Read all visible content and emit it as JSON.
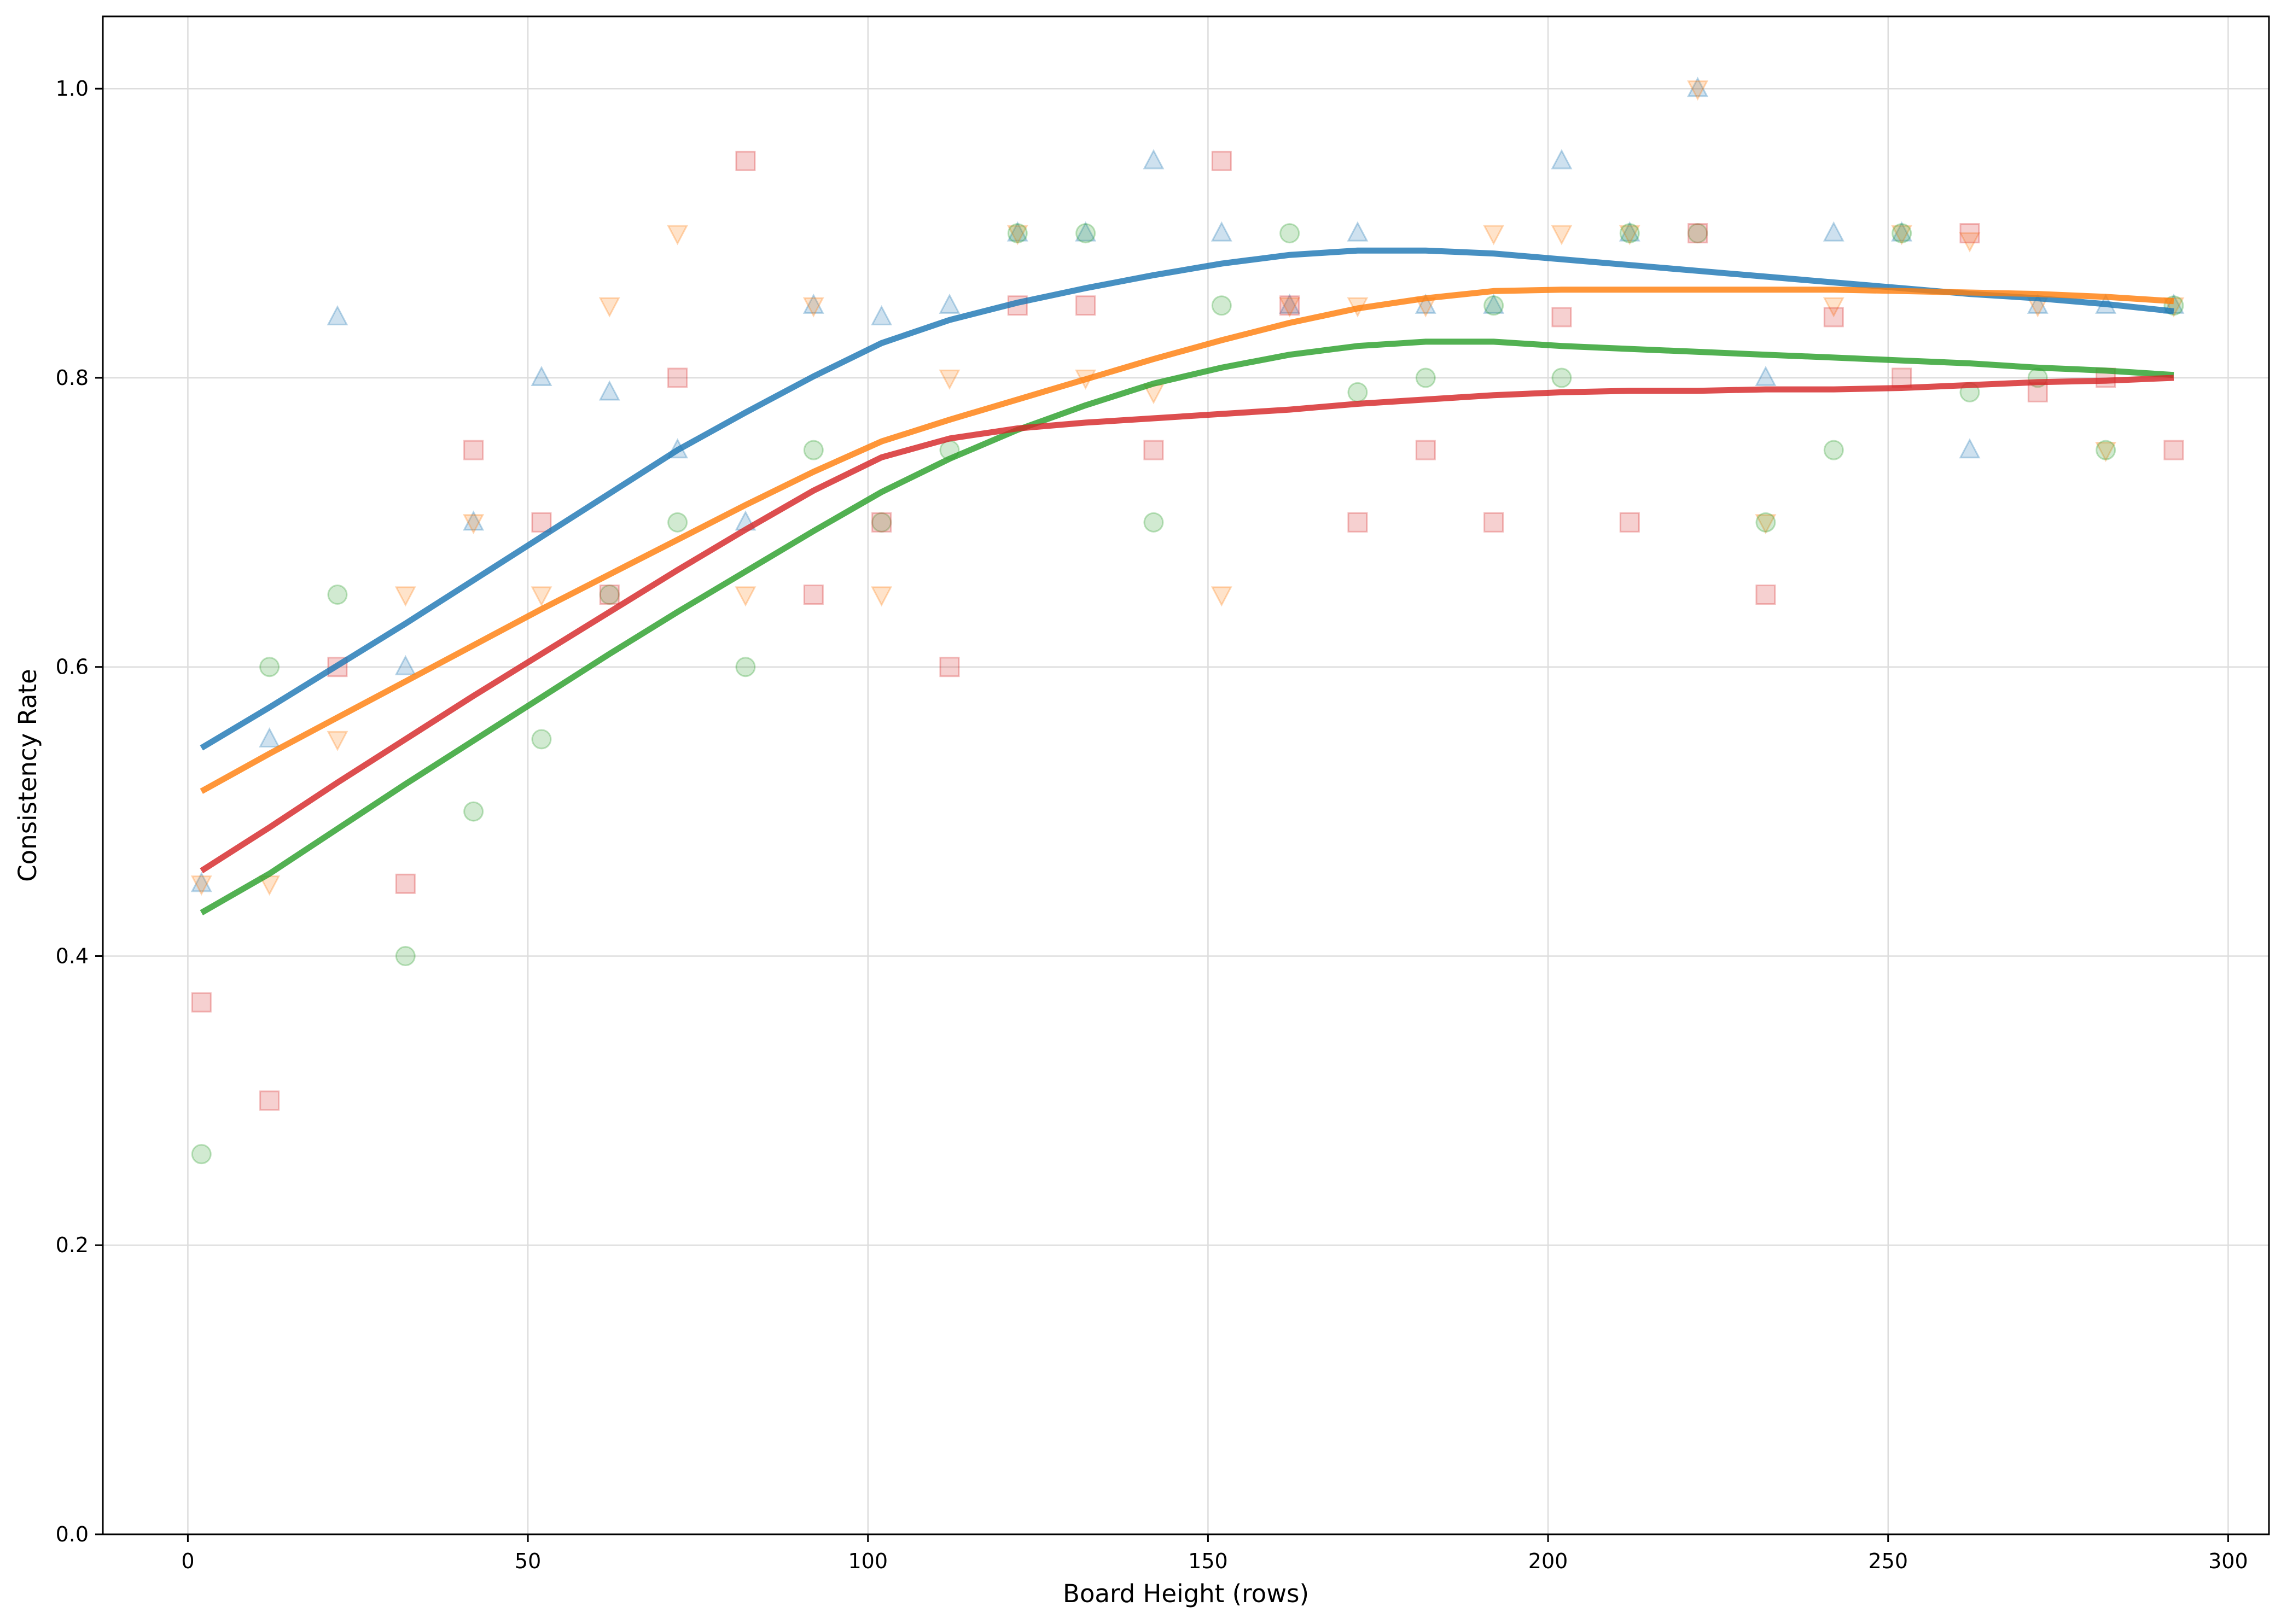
{
  "chart_data": {
    "type": "scatter",
    "xlabel": "Board Height (rows)",
    "ylabel": "Consistency Rate",
    "xlim": [
      -12.5,
      306
    ],
    "ylim": [
      0.0,
      1.05
    ],
    "xticks": [
      0,
      50,
      100,
      150,
      200,
      250,
      300
    ],
    "yticks": [
      0.0,
      0.2,
      0.4,
      0.6,
      0.8,
      1.0
    ],
    "xtick_labels": [
      "0",
      "50",
      "100",
      "150",
      "200",
      "250",
      "300"
    ],
    "ytick_labels": [
      "0.0",
      "0.2",
      "0.4",
      "0.6",
      "0.8",
      "1.0"
    ],
    "grid": true,
    "legend": "none",
    "series": [
      {
        "color": "#1f77b4",
        "marker": "triangle-up",
        "x": [
          2,
          12,
          22,
          32,
          42,
          52,
          62,
          72,
          82,
          92,
          102,
          112,
          122,
          132,
          142,
          152,
          162,
          172,
          182,
          192,
          202,
          212,
          222,
          232,
          242,
          252,
          262,
          272,
          282,
          292
        ],
        "y": [
          0.45,
          0.55,
          0.842,
          0.6,
          0.7,
          0.8,
          0.79,
          0.75,
          0.7,
          0.85,
          0.842,
          0.85,
          0.9,
          0.9,
          0.95,
          0.9,
          0.85,
          0.9,
          0.85,
          0.85,
          0.95,
          0.9,
          1.0,
          0.8,
          0.9,
          0.9,
          0.75,
          0.85,
          0.85,
          0.85
        ],
        "trend_x": [
          2,
          12,
          22,
          32,
          42,
          52,
          62,
          72,
          82,
          92,
          102,
          112,
          122,
          132,
          142,
          152,
          162,
          172,
          182,
          192,
          202,
          212,
          222,
          232,
          242,
          252,
          262,
          272,
          282,
          292
        ],
        "trend_y": [
          0.544,
          0.572,
          0.601,
          0.63,
          0.66,
          0.69,
          0.72,
          0.75,
          0.776,
          0.801,
          0.824,
          0.84,
          0.852,
          0.862,
          0.871,
          0.879,
          0.885,
          0.888,
          0.888,
          0.886,
          0.882,
          0.878,
          0.874,
          0.87,
          0.866,
          0.862,
          0.858,
          0.855,
          0.851,
          0.846
        ]
      },
      {
        "color": "#ff7f0e",
        "marker": "triangle-down",
        "x": [
          2,
          12,
          22,
          32,
          42,
          52,
          62,
          72,
          82,
          92,
          102,
          112,
          122,
          132,
          142,
          152,
          162,
          172,
          182,
          192,
          202,
          212,
          222,
          232,
          242,
          252,
          262,
          272,
          282,
          292
        ],
        "y": [
          0.45,
          0.45,
          0.55,
          0.65,
          0.7,
          0.65,
          0.85,
          0.9,
          0.65,
          0.85,
          0.65,
          0.8,
          0.9,
          0.8,
          0.79,
          0.65,
          0.85,
          0.85,
          0.85,
          0.9,
          0.9,
          0.9,
          1.0,
          0.7,
          0.85,
          0.9,
          0.895,
          0.85,
          0.75,
          0.85
        ],
        "trend_x": [
          2,
          12,
          22,
          32,
          42,
          52,
          62,
          72,
          82,
          92,
          102,
          112,
          122,
          132,
          142,
          152,
          162,
          172,
          182,
          192,
          202,
          212,
          222,
          232,
          242,
          252,
          262,
          272,
          282,
          292
        ],
        "trend_y": [
          0.514,
          0.54,
          0.565,
          0.59,
          0.615,
          0.64,
          0.664,
          0.688,
          0.712,
          0.735,
          0.756,
          0.771,
          0.785,
          0.799,
          0.813,
          0.826,
          0.838,
          0.848,
          0.855,
          0.86,
          0.861,
          0.861,
          0.861,
          0.861,
          0.861,
          0.86,
          0.859,
          0.858,
          0.856,
          0.853
        ]
      },
      {
        "color": "#2ca02c",
        "marker": "circle",
        "x": [
          2,
          12,
          22,
          32,
          42,
          52,
          62,
          72,
          82,
          92,
          102,
          112,
          122,
          132,
          142,
          152,
          162,
          172,
          182,
          192,
          202,
          212,
          222,
          232,
          242,
          252,
          262,
          272,
          282,
          292
        ],
        "y": [
          0.263,
          0.6,
          0.65,
          0.4,
          0.5,
          0.55,
          0.65,
          0.7,
          0.6,
          0.75,
          0.7,
          0.75,
          0.9,
          0.9,
          0.7,
          0.85,
          0.9,
          0.79,
          0.8,
          0.85,
          0.8,
          0.9,
          0.9,
          0.7,
          0.75,
          0.9,
          0.79,
          0.8,
          0.75,
          0.85
        ],
        "trend_x": [
          2,
          12,
          22,
          32,
          42,
          52,
          62,
          72,
          82,
          92,
          102,
          112,
          122,
          132,
          142,
          152,
          162,
          172,
          182,
          192,
          202,
          212,
          222,
          232,
          242,
          252,
          262,
          272,
          282,
          292
        ],
        "trend_y": [
          0.43,
          0.457,
          0.488,
          0.519,
          0.549,
          0.579,
          0.609,
          0.638,
          0.666,
          0.694,
          0.721,
          0.744,
          0.764,
          0.781,
          0.796,
          0.807,
          0.816,
          0.822,
          0.825,
          0.825,
          0.822,
          0.82,
          0.818,
          0.816,
          0.814,
          0.812,
          0.81,
          0.807,
          0.805,
          0.802
        ]
      },
      {
        "color": "#d62728",
        "marker": "square",
        "x": [
          2,
          12,
          22,
          32,
          42,
          52,
          62,
          72,
          82,
          92,
          102,
          112,
          122,
          132,
          142,
          152,
          162,
          172,
          182,
          192,
          202,
          212,
          222,
          232,
          242,
          252,
          262,
          272,
          282,
          292
        ],
        "y": [
          0.368,
          0.3,
          0.6,
          0.45,
          0.75,
          0.7,
          0.65,
          0.8,
          0.95,
          0.65,
          0.7,
          0.6,
          0.85,
          0.85,
          0.75,
          0.95,
          0.85,
          0.7,
          0.75,
          0.7,
          0.842,
          0.7,
          0.9,
          0.65,
          0.842,
          0.8,
          0.9,
          0.79,
          0.8,
          0.75
        ],
        "trend_x": [
          2,
          12,
          22,
          32,
          42,
          52,
          62,
          72,
          82,
          92,
          102,
          112,
          122,
          132,
          142,
          152,
          162,
          172,
          182,
          192,
          202,
          212,
          222,
          232,
          242,
          252,
          262,
          272,
          282,
          292
        ],
        "trend_y": [
          0.459,
          0.489,
          0.52,
          0.55,
          0.58,
          0.609,
          0.638,
          0.667,
          0.695,
          0.722,
          0.745,
          0.758,
          0.765,
          0.769,
          0.772,
          0.775,
          0.778,
          0.782,
          0.785,
          0.788,
          0.79,
          0.791,
          0.791,
          0.792,
          0.792,
          0.793,
          0.795,
          0.797,
          0.798,
          0.8
        ]
      }
    ]
  }
}
